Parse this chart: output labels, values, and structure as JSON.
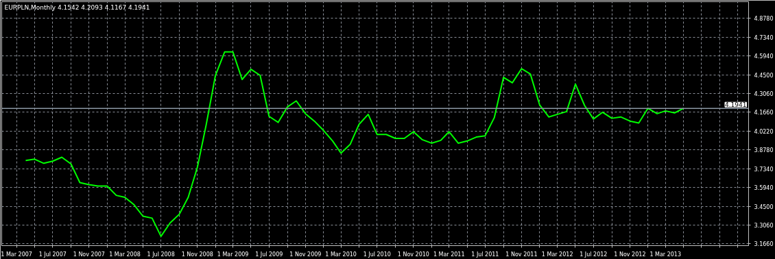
{
  "chart_data": {
    "type": "line",
    "title": "EURPLN,Monthly  4.1542 4.2093 4.1167 4.1941",
    "x": [
      "2007-04",
      "2007-05",
      "2007-06",
      "2007-07",
      "2007-08",
      "2007-09",
      "2007-10",
      "2007-11",
      "2007-12",
      "2008-01",
      "2008-02",
      "2008-03",
      "2008-04",
      "2008-05",
      "2008-06",
      "2008-07",
      "2008-08",
      "2008-09",
      "2008-10",
      "2008-11",
      "2008-12",
      "2009-01",
      "2009-02",
      "2009-03",
      "2009-04",
      "2009-05",
      "2009-06",
      "2009-07",
      "2009-08",
      "2009-09",
      "2009-10",
      "2009-11",
      "2009-12",
      "2010-01",
      "2010-02",
      "2010-03",
      "2010-04",
      "2010-05",
      "2010-06",
      "2010-07",
      "2010-08",
      "2010-09",
      "2010-10",
      "2010-11",
      "2010-12",
      "2011-01",
      "2011-02",
      "2011-03",
      "2011-04",
      "2011-05",
      "2011-06",
      "2011-07",
      "2011-08",
      "2011-09",
      "2011-10",
      "2011-11",
      "2011-12",
      "2012-01",
      "2012-02",
      "2012-03",
      "2012-04",
      "2012-05",
      "2012-06",
      "2012-07",
      "2012-08",
      "2012-09",
      "2012-10",
      "2012-11",
      "2012-12",
      "2013-01",
      "2013-02",
      "2013-03",
      "2013-04",
      "2013-05"
    ],
    "series": [
      {
        "color": "#00ff00",
        "values": [
          3.798,
          3.808,
          3.777,
          3.793,
          3.823,
          3.772,
          3.63,
          3.614,
          3.604,
          3.604,
          3.533,
          3.518,
          3.462,
          3.375,
          3.36,
          3.222,
          3.324,
          3.39,
          3.518,
          3.747,
          4.073,
          4.445,
          4.623,
          4.623,
          4.414,
          4.491,
          4.445,
          4.134,
          4.088,
          4.205,
          4.251,
          4.154,
          4.098,
          4.027,
          3.946,
          3.854,
          3.92,
          4.073,
          4.149,
          3.996,
          3.996,
          3.966,
          3.966,
          4.017,
          3.956,
          3.93,
          3.951,
          4.017,
          3.93,
          3.946,
          3.976,
          3.986,
          4.124,
          4.43,
          4.389,
          4.496,
          4.455,
          4.221,
          4.129,
          4.149,
          4.17,
          4.379,
          4.216,
          4.114,
          4.165,
          4.119,
          4.129,
          4.098,
          4.083,
          4.195,
          4.154,
          4.175,
          4.16,
          4.194
        ]
      }
    ],
    "xlim": [
      "2007-01-10",
      "2013-12-07"
    ],
    "xticks": [
      {
        "value": "2007-03",
        "label": "1 Mar 2007"
      },
      {
        "value": "2007-05",
        "label": null
      },
      {
        "value": "2007-07",
        "label": "1 Jul 2007"
      },
      {
        "value": "2007-09",
        "label": null
      },
      {
        "value": "2007-11",
        "label": "1 Nov 2007"
      },
      {
        "value": "2008-01",
        "label": null
      },
      {
        "value": "2008-03",
        "label": "1 Mar 2008"
      },
      {
        "value": "2008-05",
        "label": null
      },
      {
        "value": "2008-07",
        "label": "1 Jul 2008"
      },
      {
        "value": "2008-09",
        "label": null
      },
      {
        "value": "2008-11",
        "label": "1 Nov 2008"
      },
      {
        "value": "2009-01",
        "label": null
      },
      {
        "value": "2009-03",
        "label": "1 Mar 2009"
      },
      {
        "value": "2009-05",
        "label": null
      },
      {
        "value": "2009-07",
        "label": "1 Jul 2009"
      },
      {
        "value": "2009-09",
        "label": null
      },
      {
        "value": "2009-11",
        "label": "1 Nov 2009"
      },
      {
        "value": "2010-01",
        "label": null
      },
      {
        "value": "2010-03",
        "label": "1 Mar 2010"
      },
      {
        "value": "2010-05",
        "label": null
      },
      {
        "value": "2010-07",
        "label": "1 Jul 2010"
      },
      {
        "value": "2010-09",
        "label": null
      },
      {
        "value": "2010-11",
        "label": "1 Nov 2010"
      },
      {
        "value": "2011-01",
        "label": null
      },
      {
        "value": "2011-03",
        "label": "1 Mar 2011"
      },
      {
        "value": "2011-05",
        "label": null
      },
      {
        "value": "2011-07",
        "label": "1 Jul 2011"
      },
      {
        "value": "2011-09",
        "label": null
      },
      {
        "value": "2011-11",
        "label": "1 Nov 2011"
      },
      {
        "value": "2012-01",
        "label": null
      },
      {
        "value": "2012-03",
        "label": "1 Mar 2012"
      },
      {
        "value": "2012-05",
        "label": null
      },
      {
        "value": "2012-07",
        "label": "1 Jul 2012"
      },
      {
        "value": "2012-09",
        "label": null
      },
      {
        "value": "2012-11",
        "label": "1 Nov 2012"
      },
      {
        "value": "2013-01",
        "label": null
      },
      {
        "value": "2013-03",
        "label": "1 Mar 2013"
      },
      {
        "value": "2013-05",
        "label": null
      },
      {
        "value": "2013-07",
        "label": null
      },
      {
        "value": "2013-09",
        "label": null
      },
      {
        "value": "2013-11",
        "label": null
      }
    ],
    "ylim": [
      3.151,
      5.005
    ],
    "yticks": [
      {
        "value": 3.166,
        "label": "3.1660"
      },
      {
        "value": 3.306,
        "label": "3.3060"
      },
      {
        "value": 3.45,
        "label": "3.4500"
      },
      {
        "value": 3.594,
        "label": "3.5940"
      },
      {
        "value": 3.734,
        "label": "3.7340"
      },
      {
        "value": 3.878,
        "label": "3.8780"
      },
      {
        "value": 4.022,
        "label": "4.0220"
      },
      {
        "value": 4.166,
        "label": "4.1660"
      },
      {
        "value": 4.306,
        "label": "4.3060"
      },
      {
        "value": 4.45,
        "label": "4.4500"
      },
      {
        "value": 4.594,
        "label": "4.5940"
      },
      {
        "value": 4.734,
        "label": "4.7340"
      },
      {
        "value": 4.878,
        "label": "4.8780"
      }
    ],
    "ref_lines": [
      {
        "axis": "y",
        "value": 4.1941,
        "label": "4.1941",
        "color": "#8a96a3"
      }
    ],
    "grid": true,
    "line_style": "solid",
    "marker": "none"
  }
}
